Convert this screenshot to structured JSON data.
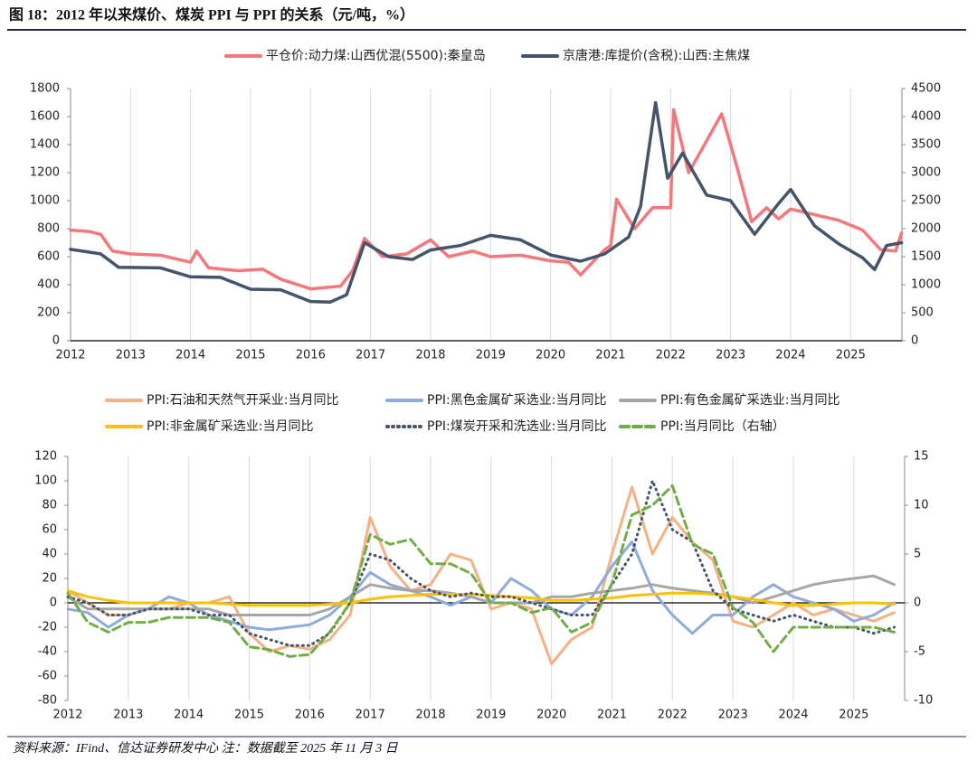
{
  "header": {
    "title": "图 18：2012 年以来煤价、煤炭 PPI 与 PPI 的关系（元/吨，%）"
  },
  "chart_data": [
    {
      "type": "line",
      "xlim": [
        2012,
        2025.9
      ],
      "xticks": [
        2012,
        2013,
        2014,
        2015,
        2016,
        2017,
        2018,
        2019,
        2020,
        2021,
        2022,
        2023,
        2024,
        2025
      ],
      "ylim": [
        0,
        1800
      ],
      "yticks": [
        0,
        200,
        400,
        600,
        800,
        1000,
        1200,
        1400,
        1600,
        1800
      ],
      "y2lim": [
        0,
        4500
      ],
      "y2ticks": [
        0,
        500,
        1000,
        1500,
        2000,
        2500,
        3000,
        3500,
        4000,
        4500
      ],
      "grid": true,
      "series": [
        {
          "name": "平仓价:动力煤:山西优混(5500):秦皇岛",
          "color": "#f4777b",
          "x": [
            2012,
            2012.3,
            2012.5,
            2012.7,
            2013,
            2013.5,
            2014,
            2014.1,
            2014.3,
            2014.8,
            2015.2,
            2015.5,
            2016,
            2016.5,
            2016.7,
            2016.9,
            2017.2,
            2017.6,
            2018,
            2018.3,
            2018.7,
            2019,
            2019.5,
            2020,
            2020.3,
            2020.5,
            2020.9,
            2021,
            2021.1,
            2021.4,
            2021.7,
            2022,
            2022.05,
            2022.3,
            2022.5,
            2022.85,
            2023.1,
            2023.35,
            2023.6,
            2023.8,
            2024,
            2024.4,
            2024.8,
            2025.2,
            2025.5,
            2025.75,
            2025.85
          ],
          "values": [
            790,
            780,
            760,
            640,
            620,
            610,
            560,
            640,
            520,
            500,
            510,
            440,
            370,
            390,
            500,
            730,
            600,
            620,
            720,
            600,
            640,
            600,
            610,
            570,
            560,
            470,
            650,
            680,
            1010,
            800,
            950,
            950,
            1650,
            1200,
            1350,
            1620,
            1250,
            850,
            950,
            870,
            940,
            900,
            860,
            790,
            650,
            640,
            770
          ]
        },
        {
          "name": "京唐港:库提价(含税):山西:主焦煤",
          "color": "#44546a",
          "axis": "y2",
          "x": [
            2012,
            2012.5,
            2012.8,
            2013.5,
            2014,
            2014.5,
            2015,
            2015.5,
            2016,
            2016.33,
            2016.6,
            2016.9,
            2017.3,
            2017.7,
            2018,
            2018.5,
            2019,
            2019.5,
            2020,
            2020.5,
            2020.9,
            2021.3,
            2021.5,
            2021.75,
            2021.95,
            2022.2,
            2022.6,
            2023,
            2023.4,
            2023.8,
            2024,
            2024.4,
            2024.8,
            2025.2,
            2025.4,
            2025.6,
            2025.85
          ],
          "values": [
            1630,
            1550,
            1310,
            1300,
            1140,
            1130,
            920,
            910,
            700,
            690,
            820,
            1750,
            1500,
            1450,
            1620,
            1700,
            1880,
            1800,
            1530,
            1420,
            1550,
            1850,
            2400,
            4250,
            2900,
            3350,
            2600,
            2500,
            1900,
            2450,
            2700,
            2050,
            1730,
            1480,
            1270,
            1700,
            1750
          ]
        }
      ]
    },
    {
      "type": "line",
      "xlim": [
        2012,
        2025.9
      ],
      "xticks": [
        2012,
        2013,
        2014,
        2015,
        2016,
        2017,
        2018,
        2019,
        2020,
        2021,
        2022,
        2023,
        2024,
        2025
      ],
      "ylim": [
        -80,
        120
      ],
      "yticks": [
        -80,
        -60,
        -40,
        -20,
        0,
        20,
        40,
        60,
        80,
        100,
        120
      ],
      "y2lim": [
        -10,
        15
      ],
      "y2ticks": [
        -10,
        -5,
        0,
        5,
        10,
        15
      ],
      "grid": true,
      "x": [
        2012,
        2012.33,
        2012.67,
        2013,
        2013.33,
        2013.67,
        2014,
        2014.33,
        2014.67,
        2015,
        2015.33,
        2015.67,
        2016,
        2016.33,
        2016.67,
        2017,
        2017.33,
        2017.67,
        2018,
        2018.33,
        2018.67,
        2019,
        2019.33,
        2019.67,
        2020,
        2020.33,
        2020.67,
        2021,
        2021.33,
        2021.67,
        2022,
        2022.33,
        2022.67,
        2023,
        2023.33,
        2023.67,
        2024,
        2024.33,
        2024.67,
        2025,
        2025.33,
        2025.67
      ],
      "series": [
        {
          "name": "PPI:石油和天然气开采业:当月同比",
          "color": "#f4b183",
          "values": [
            10,
            0,
            -10,
            -10,
            -5,
            -5,
            0,
            0,
            5,
            -25,
            -40,
            -35,
            -38,
            -30,
            -10,
            70,
            30,
            10,
            15,
            40,
            35,
            -5,
            0,
            -5,
            -50,
            -30,
            -20,
            40,
            95,
            40,
            70,
            50,
            35,
            -15,
            -20,
            -10,
            0,
            -10,
            -5,
            -10,
            -15,
            -8
          ]
        },
        {
          "name": "PPI:黑色金属矿采选业:当月同比",
          "color": "#8faadc",
          "values": [
            -5,
            -8,
            -20,
            -10,
            -5,
            5,
            0,
            -10,
            -15,
            -20,
            -22,
            -20,
            -18,
            -10,
            5,
            25,
            15,
            10,
            5,
            -2,
            5,
            0,
            20,
            10,
            -5,
            -10,
            5,
            30,
            50,
            10,
            -10,
            -25,
            -10,
            -10,
            5,
            15,
            5,
            0,
            -5,
            -15,
            -10,
            0
          ]
        },
        {
          "name": "PPI:有色金属矿采选业:当月同比",
          "color": "#a6a6a6",
          "values": [
            5,
            -5,
            -5,
            -5,
            -5,
            -5,
            -5,
            -5,
            -10,
            -10,
            -10,
            -10,
            -10,
            -5,
            5,
            15,
            12,
            10,
            10,
            8,
            5,
            0,
            0,
            0,
            5,
            5,
            8,
            10,
            12,
            15,
            12,
            10,
            8,
            5,
            0,
            5,
            10,
            15,
            18,
            20,
            22,
            15
          ]
        },
        {
          "name": "PPI:非金属矿采选业:当月同比",
          "color": "#ffc000",
          "values": [
            10,
            5,
            2,
            0,
            0,
            0,
            0,
            0,
            -1,
            -2,
            -2,
            -2,
            -2,
            -1,
            0,
            3,
            5,
            6,
            7,
            7,
            7,
            6,
            5,
            4,
            2,
            2,
            3,
            4,
            6,
            7,
            8,
            8,
            7,
            5,
            3,
            0,
            -2,
            -2,
            -1,
            0,
            0,
            -1
          ]
        },
        {
          "name": "PPI:煤炭开采和洗选业:当月同比",
          "color": "#44546a",
          "dash": "dotted",
          "values": [
            5,
            0,
            -10,
            -10,
            -5,
            -5,
            -5,
            -10,
            -10,
            -25,
            -30,
            -35,
            -35,
            -25,
            0,
            40,
            35,
            20,
            10,
            5,
            8,
            5,
            5,
            0,
            -5,
            -10,
            -10,
            15,
            40,
            100,
            60,
            50,
            10,
            -5,
            -10,
            -15,
            -10,
            -15,
            -20,
            -20,
            -25,
            -20
          ]
        },
        {
          "name": "PPI:当月同比（右轴）",
          "color": "#70ad47",
          "dash": "dashed",
          "axis": "y2",
          "values": [
            1,
            -2,
            -3,
            -2,
            -2,
            -1.5,
            -1.5,
            -1.5,
            -2,
            -4.5,
            -4.8,
            -5.5,
            -5.3,
            -3,
            0,
            7,
            6,
            6.5,
            4,
            4,
            3,
            0,
            0,
            -1,
            -0.5,
            -3,
            -2,
            2,
            9,
            10,
            12,
            6,
            5,
            -0.5,
            -2,
            -5,
            -2.5,
            -2.5,
            -2.5,
            -2.5,
            -2.5,
            -3
          ]
        }
      ]
    }
  ],
  "footer": {
    "note": "资料来源：IFind、信达证券研发中心 注：数据截至 2025 年 11 月 3 日"
  }
}
